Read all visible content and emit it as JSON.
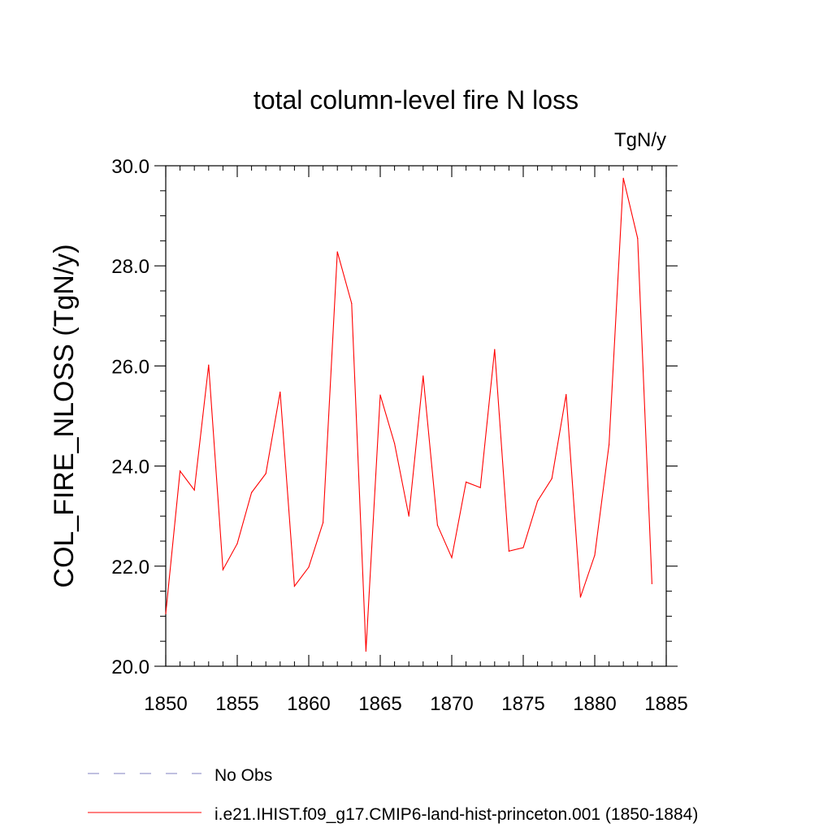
{
  "chart_data": {
    "type": "line",
    "title": "total column-level fire N loss",
    "units_label": "TgN/y",
    "xlabel": "",
    "ylabel": "COL_FIRE_NLOSS  (TgN/y)",
    "xlim": [
      1850,
      1885
    ],
    "ylim": [
      20.0,
      30.0
    ],
    "x_ticks": [
      1850,
      1855,
      1860,
      1865,
      1870,
      1875,
      1880,
      1885
    ],
    "x_tick_labels": [
      "1850",
      "1855",
      "1860",
      "1865",
      "1870",
      "1875",
      "1880",
      "1885"
    ],
    "y_ticks": [
      20.0,
      22.0,
      24.0,
      26.0,
      28.0,
      30.0
    ],
    "y_tick_labels": [
      "20.0",
      "22.0",
      "24.0",
      "26.0",
      "28.0",
      "30.0"
    ],
    "grid": false,
    "legend_position": "bottom",
    "series": [
      {
        "name": "No Obs",
        "color": "#8080c0",
        "style": "dashed",
        "x": [],
        "values": []
      },
      {
        "name": "i.e21.IHIST.f09_g17.CMIP6-land-hist-princeton.001 (1850-1884)",
        "color": "#ff0000",
        "style": "solid",
        "x": [
          1850,
          1851,
          1852,
          1853,
          1854,
          1855,
          1856,
          1857,
          1858,
          1859,
          1860,
          1861,
          1862,
          1863,
          1864,
          1865,
          1866,
          1867,
          1868,
          1869,
          1870,
          1871,
          1872,
          1873,
          1874,
          1875,
          1876,
          1877,
          1878,
          1879,
          1880,
          1881,
          1882,
          1883,
          1884
        ],
        "values": [
          21.05,
          23.9,
          23.52,
          26.02,
          21.93,
          22.45,
          23.47,
          23.85,
          25.48,
          21.6,
          21.98,
          22.87,
          28.28,
          27.25,
          20.3,
          25.42,
          24.45,
          23.0,
          25.8,
          22.82,
          22.17,
          23.68,
          23.57,
          26.33,
          22.3,
          22.37,
          23.3,
          23.75,
          25.43,
          21.38,
          22.22,
          24.43,
          29.75,
          28.55,
          21.65
        ]
      }
    ]
  }
}
